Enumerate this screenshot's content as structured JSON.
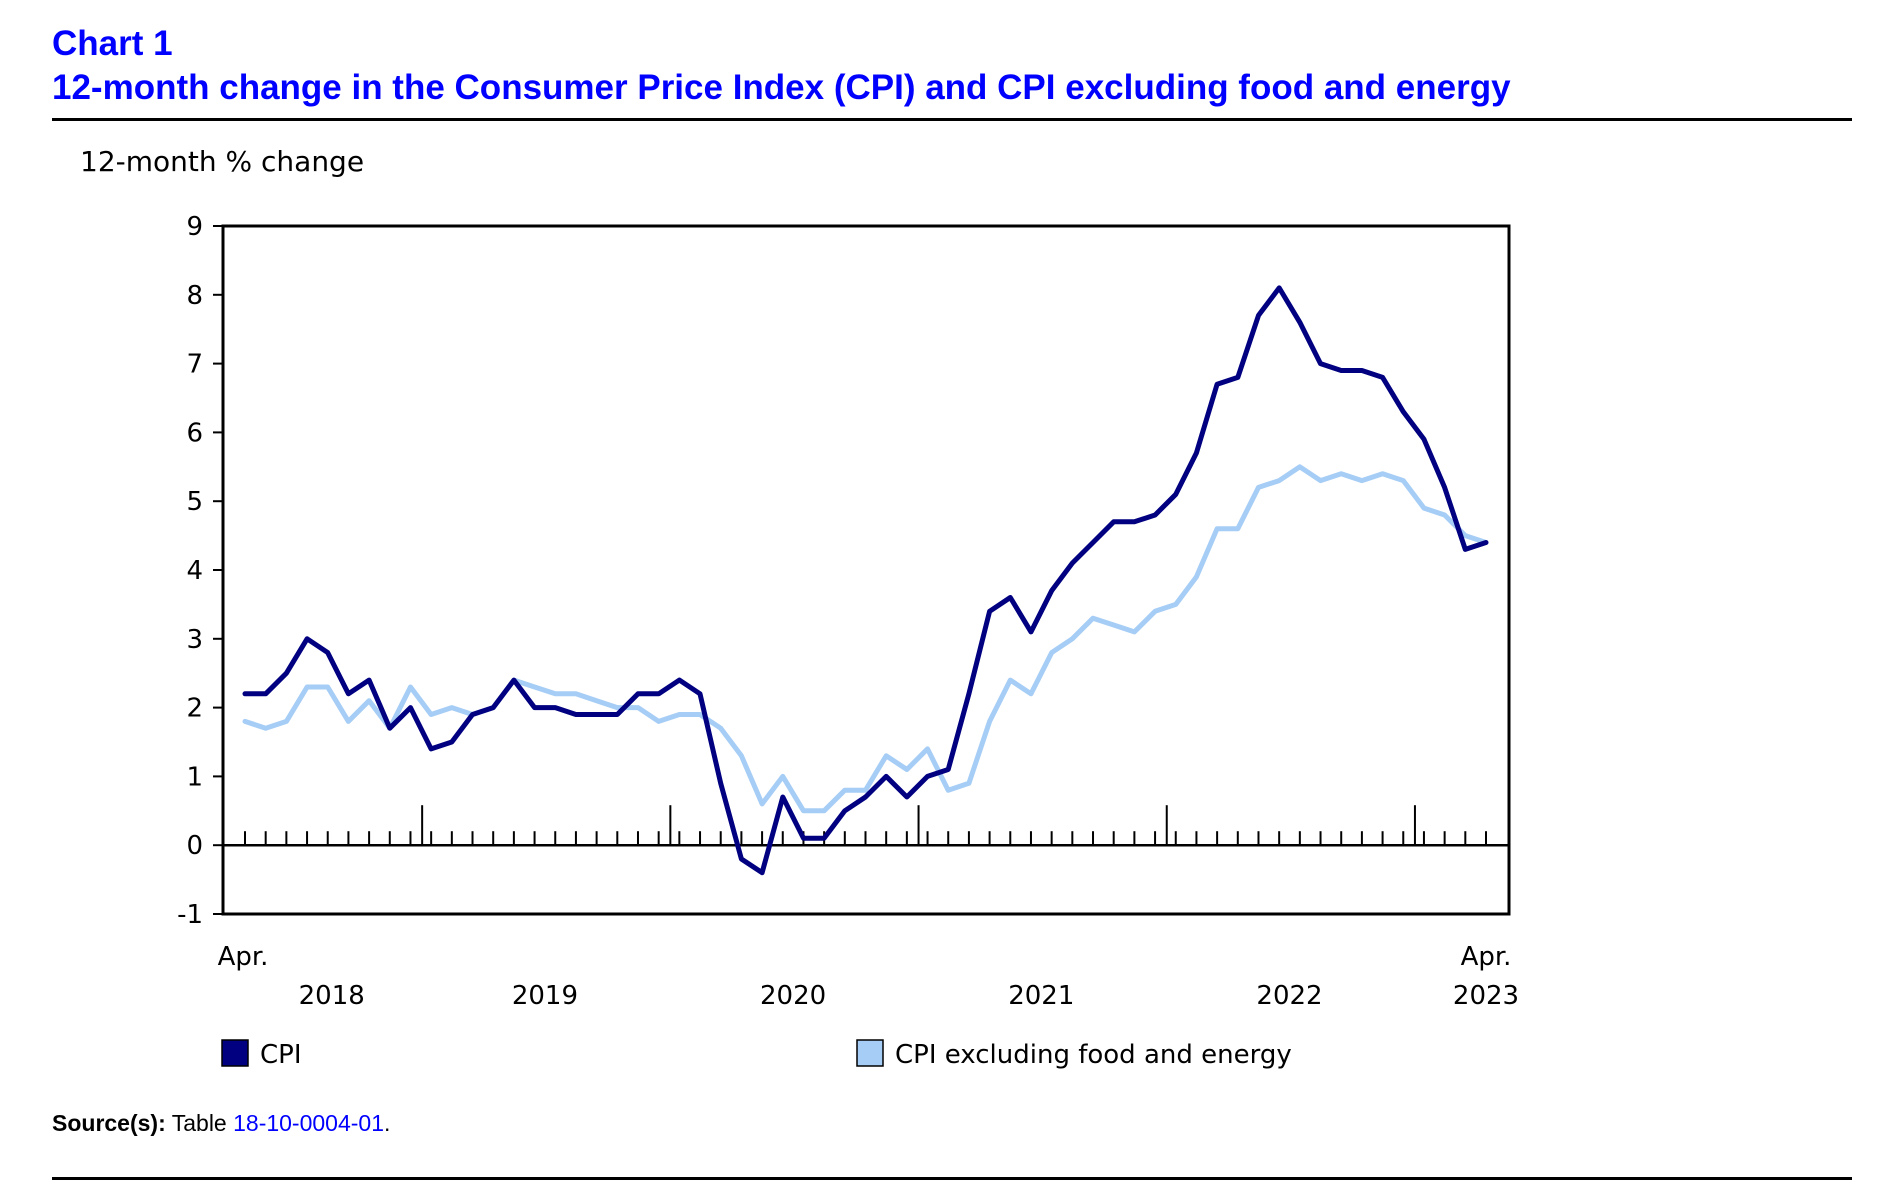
{
  "header": {
    "chart_number": "Chart 1",
    "title": "12-month change in the Consumer Price Index (CPI) and CPI excluding food and energy"
  },
  "source": {
    "label": "Source(s):",
    "text": "Table",
    "link_text": "18-10-0004-01",
    "suffix": "."
  },
  "colors": {
    "title": "#0000ff",
    "cpi": "#000080",
    "core": "#a6cdf5",
    "link": "#0000ff"
  },
  "chart_data": {
    "type": "line",
    "ylabel": "12-month % change",
    "ylim": [
      -1,
      9
    ],
    "yticks": [
      "9",
      "8",
      "7",
      "6",
      "5",
      "4",
      "3",
      "2",
      "1",
      "0",
      "-1"
    ],
    "x_start_label": "Apr.",
    "x_end_label": "Apr.",
    "year_labels": [
      "2018",
      "2019",
      "2020",
      "2021",
      "2022",
      "2023"
    ],
    "x_start": "2018-04",
    "x_end": "2023-04",
    "grid": false,
    "legend_position": "bottom",
    "series": [
      {
        "name": "CPI",
        "color": "#000080",
        "values": [
          2.2,
          2.2,
          2.5,
          3.0,
          2.8,
          2.2,
          2.4,
          1.7,
          2.0,
          1.4,
          1.5,
          1.9,
          2.0,
          2.4,
          2.0,
          2.0,
          1.9,
          1.9,
          1.9,
          2.2,
          2.2,
          2.4,
          2.2,
          0.9,
          -0.2,
          -0.4,
          0.7,
          0.1,
          0.1,
          0.5,
          0.7,
          1.0,
          0.7,
          1.0,
          1.1,
          2.2,
          3.4,
          3.6,
          3.1,
          3.7,
          4.1,
          4.4,
          4.7,
          4.7,
          4.8,
          5.1,
          5.7,
          6.7,
          6.8,
          7.7,
          8.1,
          7.6,
          7.0,
          6.9,
          6.9,
          6.8,
          6.3,
          5.9,
          5.2,
          4.3,
          4.4
        ]
      },
      {
        "name": "CPI excluding food and energy",
        "color": "#a6cdf5",
        "values": [
          1.8,
          1.7,
          1.8,
          2.3,
          2.3,
          1.8,
          2.1,
          1.7,
          2.3,
          1.9,
          2.0,
          1.9,
          2.0,
          2.4,
          2.3,
          2.2,
          2.2,
          2.1,
          2.0,
          2.0,
          1.8,
          1.9,
          1.9,
          1.7,
          1.3,
          0.6,
          1.0,
          0.5,
          0.5,
          0.8,
          0.8,
          1.3,
          1.1,
          1.4,
          0.8,
          0.9,
          1.8,
          2.4,
          2.2,
          2.8,
          3.0,
          3.3,
          3.2,
          3.1,
          3.4,
          3.5,
          3.9,
          4.6,
          4.6,
          5.2,
          5.3,
          5.5,
          5.3,
          5.4,
          5.3,
          5.4,
          5.3,
          4.9,
          4.8,
          4.5,
          4.4
        ]
      }
    ]
  }
}
